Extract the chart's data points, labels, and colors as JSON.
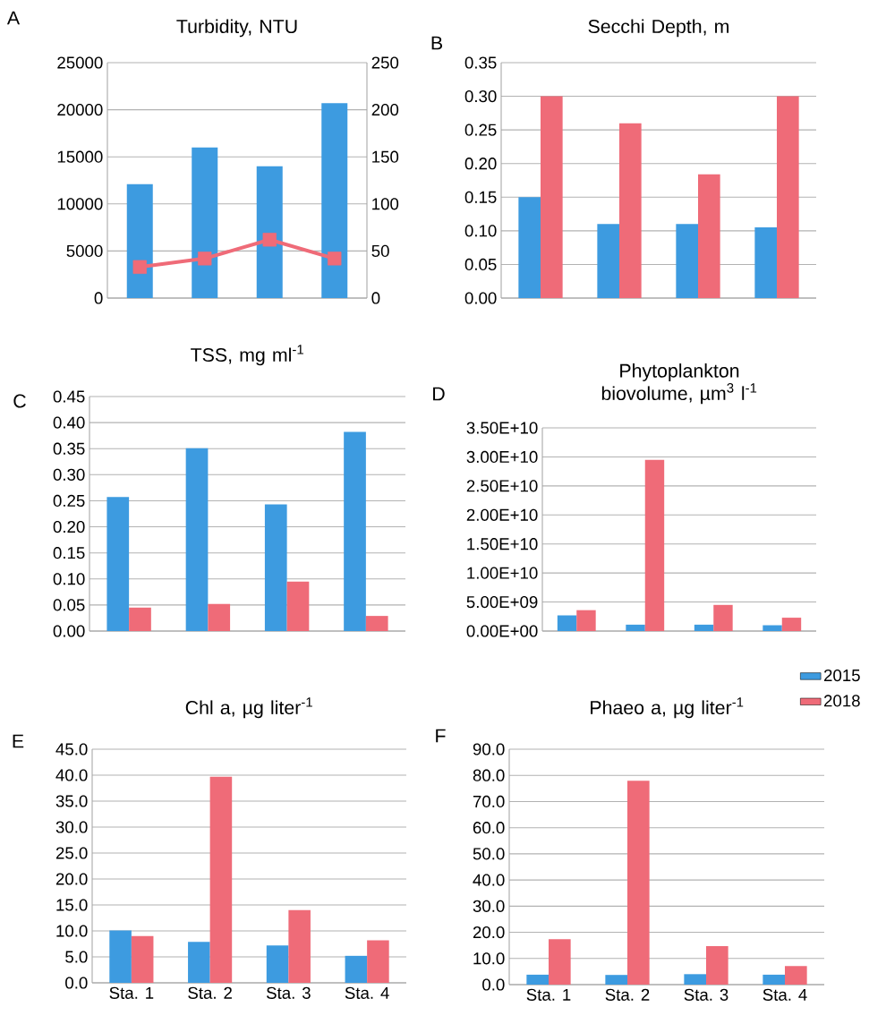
{
  "chart_data": [
    {
      "type": "bar",
      "title": "Turbidity, NTU",
      "annotations": [
        "A"
      ],
      "categories": [
        null,
        null,
        null,
        null
      ],
      "grid": "y",
      "ylim": [
        0,
        25000
      ],
      "yticks": [
        0,
        5000,
        10000,
        15000,
        20000,
        25000
      ],
      "y2lim": [
        0,
        250
      ],
      "y2ticks": [
        0,
        50,
        100,
        150,
        200,
        250
      ],
      "series": [
        {
          "color": "#3d9be0",
          "values": [
            12100,
            16000,
            14000,
            20700
          ]
        },
        {
          "type": "line",
          "axis": "y2",
          "marker": "square",
          "color": "#ef6b78",
          "values": [
            33,
            42,
            62,
            42
          ]
        }
      ]
    },
    {
      "type": "bar",
      "title": "Secchi Depth, m",
      "annotations": [
        "B"
      ],
      "categories": [
        null,
        null,
        null,
        null
      ],
      "grid": "y",
      "ylim": [
        0,
        0.35
      ],
      "yticks": [
        {
          "value": 0,
          "label": "0.00"
        },
        {
          "value": 0.05,
          "label": "0.05"
        },
        {
          "value": 0.1,
          "label": "0.10"
        },
        {
          "value": 0.15,
          "label": "0.15"
        },
        {
          "value": 0.2,
          "label": "0.20"
        },
        {
          "value": 0.25,
          "label": "0.25"
        },
        {
          "value": 0.3,
          "label": "0.30"
        },
        {
          "value": 0.35,
          "label": "0.35"
        }
      ],
      "series": [
        {
          "color": "#3d9be0",
          "values": [
            0.15,
            0.11,
            0.11,
            0.105
          ]
        },
        {
          "color": "#ef6b78",
          "values": [
            0.3,
            0.26,
            0.184,
            0.3
          ]
        }
      ]
    },
    {
      "type": "bar",
      "title": "TSS, mg ml$^{-1}$",
      "annotations": [
        "C"
      ],
      "categories": [
        null,
        null,
        null,
        null
      ],
      "grid": "y",
      "ylim": [
        0,
        0.45
      ],
      "yticks": [
        {
          "value": 0,
          "label": "0.00"
        },
        {
          "value": 0.05,
          "label": "0.05"
        },
        {
          "value": 0.1,
          "label": "0.10"
        },
        {
          "value": 0.15,
          "label": "0.15"
        },
        {
          "value": 0.2,
          "label": "0.20"
        },
        {
          "value": 0.25,
          "label": "0.25"
        },
        {
          "value": 0.3,
          "label": "0.30"
        },
        {
          "value": 0.35,
          "label": "0.35"
        },
        {
          "value": 0.4,
          "label": "0.40"
        },
        {
          "value": 0.45,
          "label": "0.45"
        }
      ],
      "series": [
        {
          "color": "#3d9be0",
          "values": [
            0.257,
            0.351,
            0.243,
            0.382
          ]
        },
        {
          "color": "#ef6b78",
          "values": [
            0.045,
            0.052,
            0.095,
            0.029
          ]
        }
      ]
    },
    {
      "type": "bar",
      "title": "Phytoplankton biovolume, µm$^{3}$ l$^{-1}$",
      "annotations": [
        "D"
      ],
      "categories": [
        null,
        null,
        null,
        null
      ],
      "grid": "y",
      "ylim": [
        0,
        35000000000
      ],
      "yticks": [
        {
          "value": 0,
          "label": "0.00E+00"
        },
        {
          "value": 5000000000,
          "label": "5.00E+09"
        },
        {
          "value": 10000000000,
          "label": "1.00E+10"
        },
        {
          "value": 15000000000,
          "label": "1.50E+10"
        },
        {
          "value": 20000000000,
          "label": "2.00E+10"
        },
        {
          "value": 25000000000,
          "label": "2.50E+10"
        },
        {
          "value": 30000000000,
          "label": "3.00E+10"
        },
        {
          "value": 35000000000,
          "label": "3.50E+10"
        }
      ],
      "series": [
        {
          "color": "#3d9be0",
          "values": [
            2700000000,
            1100000000,
            1100000000,
            1000000000
          ]
        },
        {
          "color": "#ef6b78",
          "values": [
            3600000000,
            29500000000,
            4500000000,
            2300000000
          ]
        }
      ]
    },
    {
      "type": "bar",
      "title": "Chl a, µg liter$^{-1}$",
      "annotations": [
        "E"
      ],
      "categories": [
        "Sta. 1",
        "Sta. 2",
        "Sta. 3",
        "Sta. 4"
      ],
      "grid": "y",
      "ylim": [
        0,
        45
      ],
      "yticks": [
        {
          "value": 0,
          "label": "0.0"
        },
        {
          "value": 5,
          "label": "5.0"
        },
        {
          "value": 10,
          "label": "10.0"
        },
        {
          "value": 15,
          "label": "15.0"
        },
        {
          "value": 20,
          "label": "20.0"
        },
        {
          "value": 25,
          "label": "25.0"
        },
        {
          "value": 30,
          "label": "30.0"
        },
        {
          "value": 35,
          "label": "35.0"
        },
        {
          "value": 40,
          "label": "40.0"
        },
        {
          "value": 45,
          "label": "45.0"
        }
      ],
      "series": [
        {
          "color": "#3d9be0",
          "values": [
            10.1,
            7.9,
            7.2,
            5.2
          ]
        },
        {
          "color": "#ef6b78",
          "values": [
            9.0,
            39.7,
            14.0,
            8.2
          ]
        }
      ]
    },
    {
      "type": "bar",
      "title": "Phaeo a, µg liter$^{-1}$",
      "annotations": [
        "F"
      ],
      "categories": [
        "Sta. 1",
        "Sta. 2",
        "Sta. 3",
        "Sta. 4"
      ],
      "grid": "y",
      "legend": "top right",
      "ylim": [
        0,
        90
      ],
      "yticks": [
        {
          "value": 0,
          "label": "0.0"
        },
        {
          "value": 10,
          "label": "10.0"
        },
        {
          "value": 20,
          "label": "20.0"
        },
        {
          "value": 30,
          "label": "30.0"
        },
        {
          "value": 40,
          "label": "40.0"
        },
        {
          "value": 50,
          "label": "50.0"
        },
        {
          "value": 60,
          "label": "60.0"
        },
        {
          "value": 70,
          "label": "70.0"
        },
        {
          "value": 80,
          "label": "80.0"
        },
        {
          "value": 90,
          "label": "90.0"
        }
      ],
      "series": [
        {
          "name": "2015",
          "color": "#3d9be0",
          "values": [
            3.8,
            3.7,
            4.0,
            3.8
          ]
        },
        {
          "name": "2018",
          "color": "#ef6b78",
          "values": [
            17.4,
            77.9,
            14.7,
            7.1
          ]
        }
      ]
    }
  ]
}
